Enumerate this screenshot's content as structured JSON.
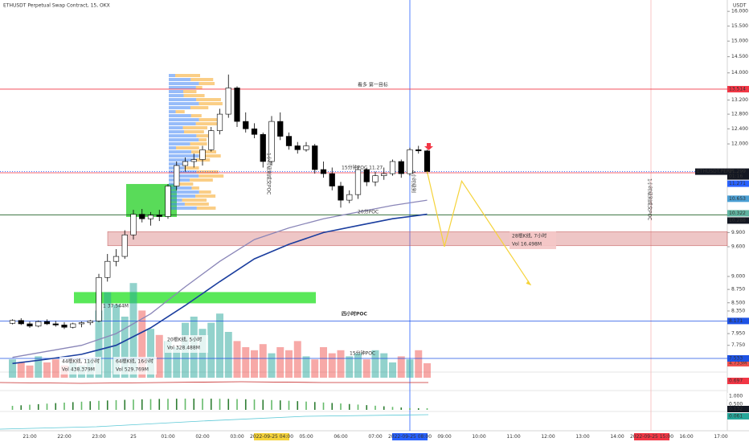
{
  "chart_data": {
    "type": "candlestick",
    "title": "ETHUSDT Perpetual Swap Contract, 15, OKX",
    "currency": "USDT",
    "log_scale": true,
    "ylim": [
      7.3,
      16.4
    ],
    "yticks": [
      {
        "value": 16,
        "label": "16.000"
      },
      {
        "value": 15.5,
        "label": "15.500"
      },
      {
        "value": 15,
        "label": "15.000"
      },
      {
        "value": 14.5,
        "label": "14.500"
      },
      {
        "value": 14,
        "label": "14.000"
      },
      {
        "value": 13.2,
        "label": "13.200"
      },
      {
        "value": 12.8,
        "label": "12.800"
      },
      {
        "value": 12.4,
        "label": "12.400"
      },
      {
        "value": 12,
        "label": "12.000"
      },
      {
        "value": 9.9,
        "label": "9.900"
      },
      {
        "value": 9.6,
        "label": "9.600"
      },
      {
        "value": 9,
        "label": "9.000"
      },
      {
        "value": 8.75,
        "label": "8.750"
      },
      {
        "value": 8.5,
        "label": "8.500"
      },
      {
        "value": 8.35,
        "label": "8.350"
      },
      {
        "value": 7.95,
        "label": "7.950"
      },
      {
        "value": 7.75,
        "label": "7.750"
      }
    ],
    "xtick_labels": [
      "21:00",
      "22:00",
      "23:00",
      "25",
      "01:00",
      "02:00",
      "03:00",
      "2022-09-25  04:00",
      "05:00",
      "06:00",
      "07:00",
      "2022-09-25  08:00",
      "09:00",
      "10:00",
      "11:00",
      "12:00",
      "13:00",
      "14:00",
      "2022-09-25  15:00",
      "16:00",
      "17:00"
    ],
    "xtick_highlights": {
      "7": "#f5d33a",
      "11": "#2962ff",
      "18": "#f23645"
    },
    "up_color": "#ffffff",
    "down_color": "#000000",
    "candles": {
      "open": [
        8.13,
        8.18,
        8.12,
        8.08,
        8.16,
        8.12,
        8.1,
        8.06,
        8.12,
        8.14,
        8.17,
        8.98,
        9.3,
        9.4,
        9.85,
        10.3,
        10.2,
        10.28,
        10.25,
        10.95,
        11.45,
        11.55,
        11.6,
        11.85,
        12.35,
        12.8,
        13.55,
        12.6,
        12.4,
        12.25,
        11.55,
        12.6,
        12.2,
        11.95,
        11.85,
        11.95,
        11.35,
        11.25,
        10.95,
        10.62,
        10.75,
        11.35,
        11.05,
        11.2,
        11.25,
        11.55,
        11.25,
        11.85,
        11.82
      ],
      "high": [
        8.2,
        8.22,
        8.16,
        8.18,
        8.2,
        8.17,
        8.15,
        8.14,
        8.16,
        8.19,
        9.05,
        9.45,
        9.55,
        9.95,
        10.4,
        10.42,
        10.35,
        10.4,
        11.0,
        11.55,
        11.65,
        11.75,
        11.95,
        12.45,
        12.95,
        13.95,
        13.6,
        12.85,
        12.55,
        12.3,
        12.75,
        12.85,
        12.3,
        12.05,
        12.05,
        12.0,
        11.55,
        11.4,
        11.05,
        10.85,
        11.45,
        11.4,
        11.3,
        11.4,
        11.6,
        11.6,
        11.9,
        11.95,
        11.85
      ],
      "low": [
        8.11,
        8.1,
        8.05,
        8.06,
        8.1,
        8.07,
        8.03,
        8.04,
        8.06,
        8.1,
        8.15,
        8.9,
        9.2,
        9.35,
        9.75,
        10.12,
        10.05,
        10.15,
        10.2,
        10.85,
        11.3,
        11.4,
        11.45,
        11.8,
        12.25,
        12.7,
        12.45,
        12.3,
        12.15,
        11.4,
        11.45,
        12.1,
        11.85,
        11.75,
        11.8,
        11.25,
        11.15,
        10.85,
        10.45,
        10.55,
        10.65,
        10.95,
        10.95,
        11.1,
        11.2,
        11.15,
        11.2,
        11.75,
        11.25
      ],
      "close": [
        8.18,
        8.12,
        8.08,
        8.16,
        8.12,
        8.1,
        8.06,
        8.12,
        8.14,
        8.17,
        8.98,
        9.3,
        9.4,
        9.85,
        10.3,
        10.2,
        10.28,
        10.25,
        10.95,
        11.45,
        11.55,
        11.6,
        11.85,
        12.35,
        12.8,
        13.55,
        12.6,
        12.4,
        12.25,
        11.55,
        12.6,
        12.2,
        11.95,
        11.85,
        11.95,
        11.35,
        11.25,
        10.95,
        10.62,
        10.75,
        11.35,
        11.05,
        11.2,
        11.25,
        11.55,
        11.25,
        11.85,
        11.82,
        11.3
      ]
    },
    "volume": {
      "values": [
        6,
        5,
        4,
        7,
        5,
        6,
        4,
        5,
        4,
        6,
        22,
        28,
        24,
        20,
        31,
        22,
        16,
        14,
        12,
        10,
        18,
        20,
        16,
        18,
        21,
        15,
        12,
        10,
        9,
        11,
        8,
        10,
        9,
        12,
        7,
        6,
        10,
        8,
        9,
        7,
        8,
        6,
        9,
        8,
        5,
        7,
        6,
        9,
        4.733
      ],
      "last_label": "4.733M",
      "up_color": "rgba(38,166,154,0.5)",
      "down_color": "rgba(239,83,80,0.5)",
      "tag_color": "#ef5350"
    },
    "ma_lines": [
      {
        "color": "#8a86b8",
        "x": [
          0,
          4,
          8,
          12,
          16,
          20,
          24,
          28,
          32,
          36,
          40,
          44,
          48
        ],
        "values": [
          7.55,
          7.65,
          7.75,
          7.95,
          8.3,
          8.8,
          9.3,
          9.75,
          10.0,
          10.2,
          10.35,
          10.5,
          10.62
        ]
      },
      {
        "color": "#1a3d9e",
        "x": [
          0,
          4,
          8,
          12,
          16,
          20,
          24,
          28,
          32,
          36,
          40,
          44,
          48
        ],
        "values": [
          7.45,
          7.52,
          7.6,
          7.75,
          8.05,
          8.45,
          8.9,
          9.35,
          9.65,
          9.9,
          10.05,
          10.2,
          10.3
        ]
      }
    ],
    "projection": {
      "color": "#f5d33a",
      "x": [
        48,
        50,
        52,
        60
      ],
      "values": [
        11.3,
        9.6,
        11.07,
        8.83
      ]
    },
    "levels": [
      {
        "value": 13.514,
        "color": "#f23645"
      },
      {
        "value": 11.299,
        "color": "#2962ff",
        "dash": "1 2"
      },
      {
        "value": 11.271,
        "color": "#f23645"
      },
      {
        "value": 10.288,
        "color": "#1b5e20"
      },
      {
        "value": 8.171,
        "color": "#1e53e5"
      },
      {
        "value": 7.533,
        "color": "#1e53e5"
      }
    ],
    "zones": [
      {
        "from": 9.62,
        "to": 9.92,
        "color": "rgba(205,92,92,0.35)"
      },
      {
        "from": 10.24,
        "to": 11.0,
        "color": "rgba(0,200,0,0.65)"
      },
      {
        "from": 8.49,
        "to": 8.7,
        "color": "rgba(0,220,0,0.65)"
      }
    ],
    "price_tags": [
      {
        "value": 13.514,
        "label": "13.514",
        "bg": "#f23645"
      },
      {
        "value": 11.299,
        "label": "11.299",
        "bg": "#131722",
        "name": "ETHUSDT.PERP",
        "sub": "01:16"
      },
      {
        "value": 11.271,
        "label": "11.271",
        "bg": "#2962ff"
      },
      {
        "value": 10.653,
        "label": "10.653",
        "bg": "#4a9fd4"
      },
      {
        "value": 10.322,
        "label": "10.322",
        "bg": "#5fb3a0"
      },
      {
        "value": 10.288,
        "label": "10.288",
        "bg": "#131722"
      },
      {
        "value": 8.171,
        "label": "8.171",
        "bg": "#1e53e5"
      },
      {
        "value": 7.533,
        "label": "7.533",
        "bg": "#1e53e5"
      }
    ],
    "annotations": [
      {
        "text": "看多 第一目标",
        "color": "#f23645"
      },
      {
        "text": "15分钟POC 11.27",
        "color": "#f23645"
      },
      {
        "text": "四小时POC",
        "color": "#1e3fa0"
      },
      {
        "text": "15分钟POC",
        "color": "#f23645"
      },
      {
        "text": "20分POC",
        "color": "#555555"
      },
      {
        "text": "1 37.544M",
        "color": "#f23645"
      }
    ],
    "measure_boxes": [
      {
        "lines": [
          "28根K线, 7小时",
          "Vol 16.498M"
        ],
        "color": "#c62828",
        "bg": "rgba(244,199,199,0.9)"
      },
      {
        "lines": [
          "20根K线, 5小时",
          "Vol 328.488M"
        ],
        "color": "#333333",
        "bg": "rgba(255,255,255,0.75)"
      },
      {
        "lines": [
          "44根K线, 11小时",
          "Vol 438.379M"
        ],
        "color": "#333333",
        "bg": "rgba(255,255,255,0.75)"
      },
      {
        "lines": [
          "64根K线, 16小时",
          "Vol 529.769M"
        ],
        "color": "#333333",
        "bg": "rgba(255,255,255,0.75)"
      }
    ],
    "vertical_notes": [
      "1小时级别成交POC",
      "4小时级别",
      "1小时级别成交POC"
    ],
    "indicator_labels": [
      {
        "label": "0.697",
        "bg": "#f23645"
      },
      {
        "label": "1.000",
        "bg": "#ffffff"
      },
      {
        "label": "0.500",
        "bg": "#ffffff"
      },
      {
        "label": "0.132",
        "bg": "#131722"
      },
      {
        "label": "0.061",
        "bg": "#26a69a"
      }
    ]
  }
}
